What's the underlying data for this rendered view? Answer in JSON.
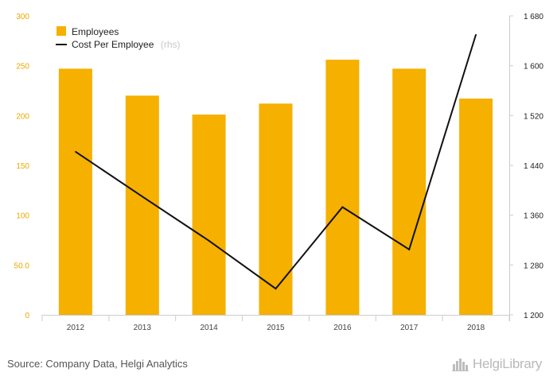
{
  "colors": {
    "bar": "#f5b000",
    "line": "#111111",
    "left_axis_text": "#e8a900",
    "right_axis_text": "#222222",
    "x_axis_text": "#444444",
    "grid": "#e6e6e6"
  },
  "legend": {
    "employees": "Employees",
    "cost_per_employee": "Cost Per Employee",
    "rhs_note": "(rhs)"
  },
  "source_text": "Source: Company Data, Helgi Analytics",
  "brand_text": "HelgiLibrary",
  "brand_icon": "helgi-logo-icon",
  "chart_data": {
    "type": "bar",
    "categories": [
      "2012",
      "2013",
      "2014",
      "2015",
      "2016",
      "2017",
      "2018"
    ],
    "series": [
      {
        "name": "Employees",
        "type": "bar",
        "axis": "left",
        "values": [
          247,
          220,
          201,
          212,
          256,
          247,
          217
        ]
      },
      {
        "name": "Cost Per Employee",
        "type": "line",
        "axis": "right",
        "values": [
          1462,
          1390,
          1319,
          1242,
          1373,
          1305,
          1650
        ]
      }
    ],
    "left_axis": {
      "ylim": [
        0,
        300
      ],
      "ticks": [
        0,
        50,
        100,
        150,
        200,
        250,
        300
      ],
      "tick_labels": [
        "0",
        "50.0",
        "100",
        "150",
        "200",
        "250",
        "300"
      ]
    },
    "right_axis": {
      "ylim": [
        1200,
        1680
      ],
      "ticks": [
        1200,
        1280,
        1360,
        1440,
        1520,
        1600,
        1680
      ],
      "tick_labels": [
        "1 200",
        "1 280",
        "1 360",
        "1 440",
        "1 520",
        "1 600",
        "1 680"
      ]
    },
    "grid": false,
    "legend_position": "top-left"
  }
}
